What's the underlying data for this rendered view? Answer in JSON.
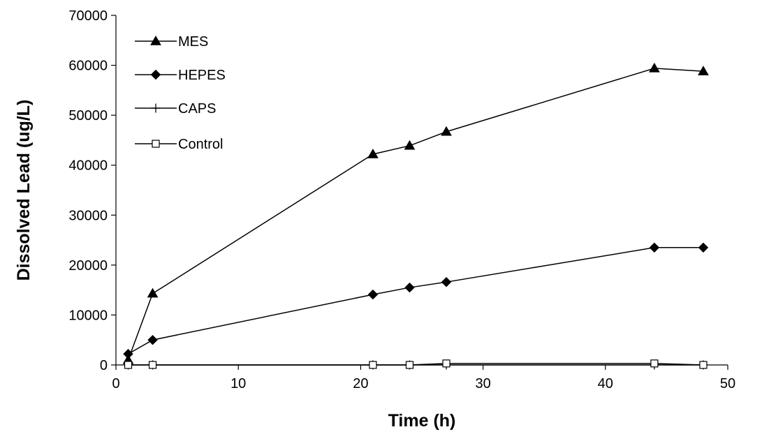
{
  "chart_data": {
    "type": "line",
    "xlabel": "Time (h)",
    "ylabel": "Dissolved Lead (ug/L)",
    "xlim": [
      0,
      50
    ],
    "ylim": [
      0,
      70000
    ],
    "x_ticks": [
      0,
      10,
      20,
      30,
      40,
      50
    ],
    "y_ticks": [
      0,
      10000,
      20000,
      30000,
      40000,
      50000,
      60000,
      70000
    ],
    "grid": false,
    "legend_position": "top-left",
    "series": [
      {
        "name": "MES",
        "marker": "filled-triangle",
        "x": [
          1,
          3,
          21,
          24,
          27,
          44,
          48
        ],
        "values": [
          1000,
          14300,
          42200,
          43900,
          46700,
          59400,
          58800
        ]
      },
      {
        "name": "HEPES",
        "marker": "filled-diamond",
        "x": [
          1,
          3,
          21,
          24,
          27,
          44,
          48
        ],
        "values": [
          2200,
          5000,
          14100,
          15500,
          16600,
          23500,
          23500
        ]
      },
      {
        "name": "CAPS",
        "marker": "plus",
        "x": [
          1,
          3,
          21,
          24,
          27,
          44,
          48
        ],
        "values": [
          0,
          0,
          0,
          0,
          0,
          0,
          0
        ]
      },
      {
        "name": "Control",
        "marker": "open-square",
        "x": [
          1,
          3,
          21,
          24,
          27,
          44,
          48
        ],
        "values": [
          0,
          0,
          0,
          0,
          300,
          300,
          0
        ]
      }
    ]
  }
}
